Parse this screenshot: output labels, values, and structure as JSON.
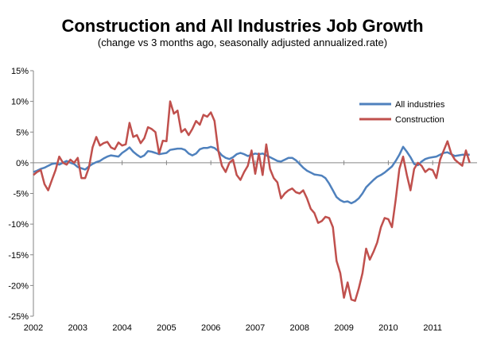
{
  "chart_data": {
    "type": "line",
    "title": "Construction and All Industries Job Growth",
    "subtitle": "(change vs 3 months ago, seasonally adjusted annualized.rate)",
    "xlabel": "",
    "ylabel": "",
    "x_ticks": [
      "2002",
      "2003",
      "2004",
      "2005",
      "2006",
      "2007",
      "2008",
      "2009",
      "2010",
      "2011"
    ],
    "y_ticks": [
      "15%",
      "10%",
      "5%",
      "0%",
      "-5%",
      "-10%",
      "-15%",
      "-20%",
      "-25%"
    ],
    "ylim": [
      -25,
      15
    ],
    "xlim": [
      2002,
      2011.95
    ],
    "grid": false,
    "legend_position": "right",
    "series": [
      {
        "name": "All industries",
        "color": "#4f81bd",
        "x": [
          2002.0,
          2002.083,
          2002.167,
          2002.25,
          2002.333,
          2002.417,
          2002.5,
          2002.583,
          2002.667,
          2002.75,
          2002.833,
          2002.917,
          2003.0,
          2003.083,
          2003.167,
          2003.25,
          2003.333,
          2003.417,
          2003.5,
          2003.583,
          2003.667,
          2003.75,
          2003.833,
          2003.917,
          2004.0,
          2004.083,
          2004.167,
          2004.25,
          2004.333,
          2004.417,
          2004.5,
          2004.583,
          2004.667,
          2004.75,
          2004.833,
          2004.917,
          2005.0,
          2005.083,
          2005.167,
          2005.25,
          2005.333,
          2005.417,
          2005.5,
          2005.583,
          2005.667,
          2005.75,
          2005.833,
          2005.917,
          2006.0,
          2006.083,
          2006.167,
          2006.25,
          2006.333,
          2006.417,
          2006.5,
          2006.583,
          2006.667,
          2006.75,
          2006.833,
          2006.917,
          2007.0,
          2007.083,
          2007.167,
          2007.25,
          2007.333,
          2007.417,
          2007.5,
          2007.583,
          2007.667,
          2007.75,
          2007.833,
          2007.917,
          2008.0,
          2008.083,
          2008.167,
          2008.25,
          2008.333,
          2008.417,
          2008.5,
          2008.583,
          2008.667,
          2008.75,
          2008.833,
          2008.917,
          2009.0,
          2009.083,
          2009.167,
          2009.25,
          2009.333,
          2009.417,
          2009.5,
          2009.583,
          2009.667,
          2009.75,
          2009.833,
          2009.917,
          2010.0,
          2010.083,
          2010.167,
          2010.25,
          2010.333,
          2010.417,
          2010.5,
          2010.583,
          2010.667,
          2010.75,
          2010.833,
          2010.917,
          2011.0,
          2011.083,
          2011.167,
          2011.25,
          2011.333,
          2011.417,
          2011.5,
          2011.583,
          2011.667,
          2011.75,
          2011.833
        ],
        "values": [
          -1.5,
          -1.3,
          -1.0,
          -0.8,
          -0.5,
          -0.2,
          -0.1,
          -0.3,
          0.0,
          0.3,
          0.0,
          -0.2,
          -0.7,
          -0.9,
          -1.1,
          -0.6,
          -0.2,
          0.1,
          0.3,
          0.7,
          1.0,
          1.2,
          1.1,
          1.0,
          1.6,
          2.0,
          2.5,
          1.8,
          1.3,
          0.9,
          1.2,
          1.9,
          1.8,
          1.6,
          1.4,
          1.5,
          1.6,
          2.1,
          2.2,
          2.3,
          2.3,
          2.1,
          1.5,
          1.2,
          1.5,
          2.2,
          2.4,
          2.4,
          2.6,
          2.4,
          1.9,
          1.2,
          0.8,
          0.6,
          0.9,
          1.4,
          1.6,
          1.4,
          1.1,
          1.3,
          1.5,
          1.4,
          1.5,
          1.2,
          0.9,
          0.6,
          0.3,
          0.2,
          0.5,
          0.8,
          0.8,
          0.4,
          -0.2,
          -0.8,
          -1.3,
          -1.6,
          -1.9,
          -2.0,
          -2.1,
          -2.5,
          -3.4,
          -4.5,
          -5.6,
          -6.1,
          -6.4,
          -6.3,
          -6.6,
          -6.3,
          -5.8,
          -5.0,
          -4.0,
          -3.4,
          -2.8,
          -2.3,
          -2.0,
          -1.6,
          -1.1,
          -0.6,
          0.3,
          1.3,
          2.6,
          1.8,
          0.9,
          -0.2,
          -0.4,
          0.2,
          0.6,
          0.8,
          0.9,
          1.0,
          1.3,
          1.6,
          1.7,
          1.4,
          1.1,
          1.2,
          1.3,
          1.3,
          1.3
        ]
      },
      {
        "name": "Construction",
        "color": "#c0504d",
        "x": [
          2002.0,
          2002.083,
          2002.167,
          2002.25,
          2002.333,
          2002.417,
          2002.5,
          2002.583,
          2002.667,
          2002.75,
          2002.833,
          2002.917,
          2003.0,
          2003.083,
          2003.167,
          2003.25,
          2003.333,
          2003.417,
          2003.5,
          2003.583,
          2003.667,
          2003.75,
          2003.833,
          2003.917,
          2004.0,
          2004.083,
          2004.167,
          2004.25,
          2004.333,
          2004.417,
          2004.5,
          2004.583,
          2004.667,
          2004.75,
          2004.833,
          2004.917,
          2005.0,
          2005.083,
          2005.167,
          2005.25,
          2005.333,
          2005.417,
          2005.5,
          2005.583,
          2005.667,
          2005.75,
          2005.833,
          2005.917,
          2006.0,
          2006.083,
          2006.167,
          2006.25,
          2006.333,
          2006.417,
          2006.5,
          2006.583,
          2006.667,
          2006.75,
          2006.833,
          2006.917,
          2007.0,
          2007.083,
          2007.167,
          2007.25,
          2007.333,
          2007.417,
          2007.5,
          2007.583,
          2007.667,
          2007.75,
          2007.833,
          2007.917,
          2008.0,
          2008.083,
          2008.167,
          2008.25,
          2008.333,
          2008.417,
          2008.5,
          2008.583,
          2008.667,
          2008.75,
          2008.833,
          2008.917,
          2009.0,
          2009.083,
          2009.167,
          2009.25,
          2009.333,
          2009.417,
          2009.5,
          2009.583,
          2009.667,
          2009.75,
          2009.833,
          2009.917,
          2010.0,
          2010.083,
          2010.167,
          2010.25,
          2010.333,
          2010.417,
          2010.5,
          2010.583,
          2010.667,
          2010.75,
          2010.833,
          2010.917,
          2011.0,
          2011.083,
          2011.167,
          2011.25,
          2011.333,
          2011.417,
          2011.5,
          2011.583,
          2011.667,
          2011.75,
          2011.833
        ],
        "values": [
          -2.0,
          -1.5,
          -1.2,
          -3.5,
          -4.5,
          -2.8,
          -1.2,
          1.0,
          0.0,
          -0.3,
          0.5,
          0.0,
          0.8,
          -2.5,
          -2.5,
          -0.8,
          2.5,
          4.2,
          2.8,
          3.2,
          3.4,
          2.5,
          2.2,
          3.3,
          2.8,
          3.0,
          6.5,
          4.2,
          4.5,
          3.2,
          4.0,
          5.8,
          5.5,
          5.0,
          1.5,
          3.6,
          3.5,
          10.0,
          8.0,
          8.5,
          5.0,
          5.5,
          4.5,
          5.5,
          6.8,
          6.2,
          7.8,
          7.5,
          8.2,
          6.8,
          2.0,
          -0.5,
          -1.5,
          0.0,
          0.5,
          -2.0,
          -2.8,
          -1.5,
          -0.5,
          2.0,
          -1.8,
          1.5,
          -2.0,
          3.0,
          -1.0,
          -2.5,
          -3.2,
          -5.8,
          -5.0,
          -4.5,
          -4.2,
          -4.8,
          -5.0,
          -4.5,
          -5.8,
          -7.5,
          -8.2,
          -9.8,
          -9.5,
          -8.8,
          -9.0,
          -10.5,
          -16.0,
          -18.0,
          -22.0,
          -19.5,
          -22.3,
          -22.5,
          -20.5,
          -18.0,
          -14.0,
          -15.8,
          -14.5,
          -13.0,
          -10.5,
          -9.0,
          -9.2,
          -10.5,
          -6.0,
          -1.0,
          1.0,
          -2.0,
          -4.5,
          -1.0,
          0.0,
          -0.5,
          -1.5,
          -1.0,
          -1.2,
          -2.5,
          0.5,
          2.0,
          3.5,
          1.5,
          0.5,
          0.0,
          -0.5,
          2.0,
          0.0
        ]
      }
    ]
  }
}
